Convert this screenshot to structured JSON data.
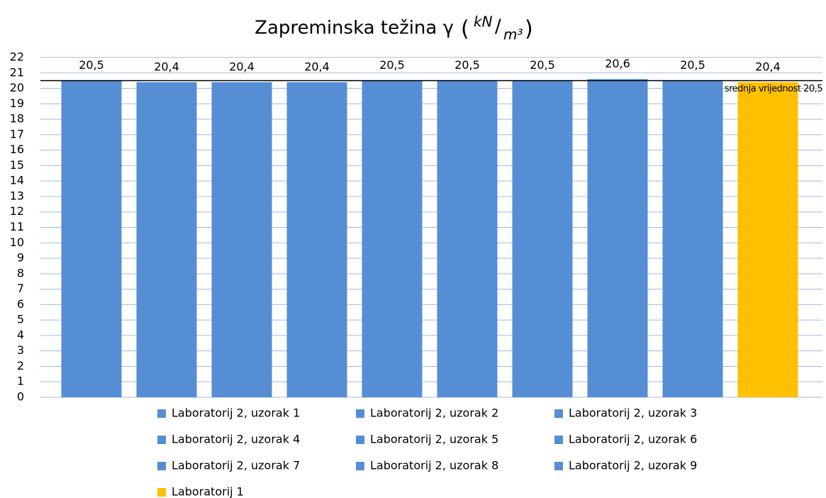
{
  "chart_data": {
    "type": "bar",
    "title": "Zapreminska težina γ",
    "title_unit": {
      "open": "(",
      "numerator": "kN",
      "slash": "/",
      "denominator": "m³",
      "close": ")"
    },
    "series": [
      {
        "name": "Laboratorij 2, uzorak 1",
        "color": "#558ed5",
        "values": [
          20.5
        ],
        "value_labels": [
          "20,5"
        ]
      },
      {
        "name": "Laboratorij 2, uzorak 2",
        "color": "#558ed5",
        "values": [
          20.4
        ],
        "value_labels": [
          "20,4"
        ]
      },
      {
        "name": "Laboratorij 2, uzorak 3",
        "color": "#558ed5",
        "values": [
          20.4
        ],
        "value_labels": [
          "20,4"
        ]
      },
      {
        "name": "Laboratorij 2, uzorak 4",
        "color": "#558ed5",
        "values": [
          20.4
        ],
        "value_labels": [
          "20,4"
        ]
      },
      {
        "name": "Laboratorij 2, uzorak 5",
        "color": "#558ed5",
        "values": [
          20.5
        ],
        "value_labels": [
          "20,5"
        ]
      },
      {
        "name": "Laboratorij 2, uzorak 6",
        "color": "#558ed5",
        "values": [
          20.5
        ],
        "value_labels": [
          "20,5"
        ]
      },
      {
        "name": "Laboratorij 2, uzorak 7",
        "color": "#558ed5",
        "values": [
          20.5
        ],
        "value_labels": [
          "20,5"
        ]
      },
      {
        "name": "Laboratorij 2, uzorak 8",
        "color": "#558ed5",
        "values": [
          20.6
        ],
        "value_labels": [
          "20,6"
        ]
      },
      {
        "name": "Laboratorij 2, uzorak 9",
        "color": "#558ed5",
        "values": [
          20.5
        ],
        "value_labels": [
          "20,5"
        ]
      },
      {
        "name": "Laboratorij 1",
        "color": "#ffc000",
        "values": [
          20.4
        ],
        "value_labels": [
          "20,4"
        ]
      }
    ],
    "reference_line": {
      "value": 20.5,
      "label": "srednja vrijednost 20,5",
      "color": "#000000"
    },
    "ylim": [
      0,
      22
    ],
    "yticks": [
      0,
      1,
      2,
      3,
      4,
      5,
      6,
      7,
      8,
      9,
      10,
      11,
      12,
      13,
      14,
      15,
      16,
      17,
      18,
      19,
      20,
      21,
      22
    ],
    "grid": true
  }
}
